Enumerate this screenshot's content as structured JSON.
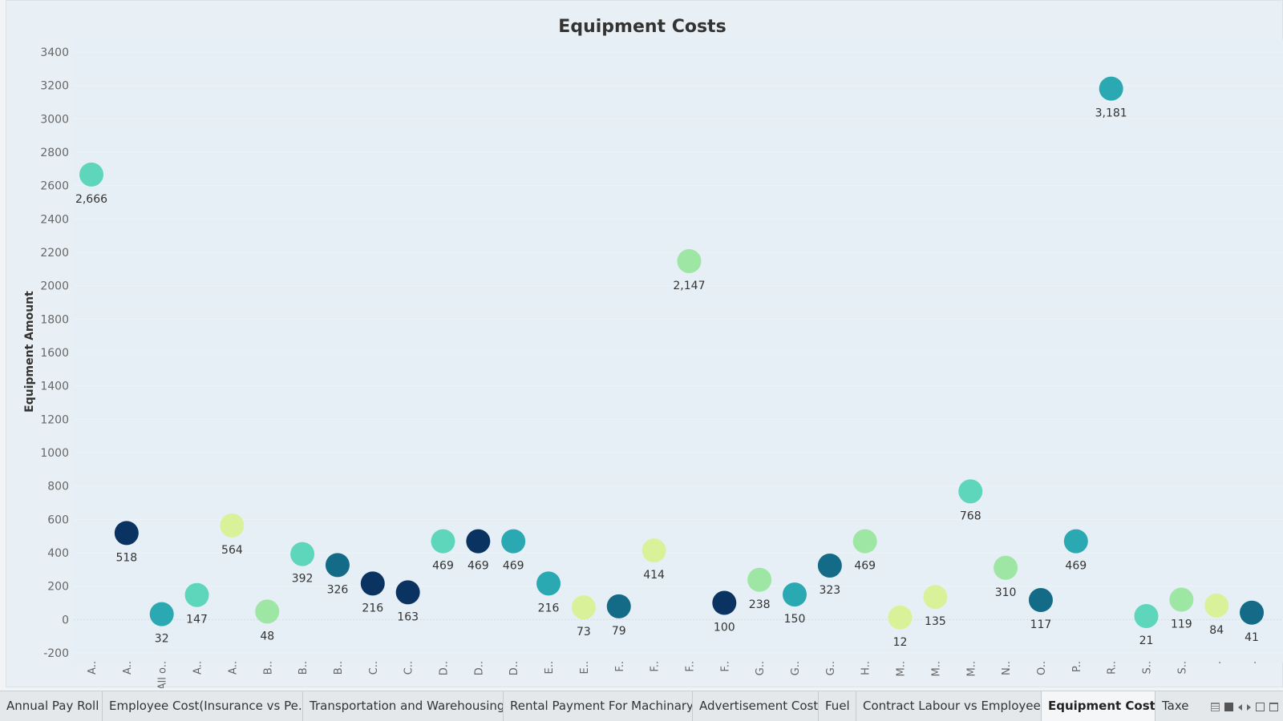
{
  "chart_data": {
    "type": "scatter",
    "title": "Equipment Costs",
    "ylabel": "Equipment Amount",
    "xlabel": "",
    "ylim": [
      -200,
      3400
    ],
    "yticks": [
      -200,
      0,
      200,
      400,
      600,
      800,
      1000,
      1200,
      1400,
      1600,
      1800,
      2000,
      2200,
      2400,
      2600,
      2800,
      3000,
      3200,
      3400
    ],
    "grid": true,
    "categories": [
      "A..",
      "A..",
      "All o..",
      "A..",
      "A..",
      "B..",
      "B..",
      "B..",
      "C..",
      "C..",
      "D..",
      "D..",
      "D..",
      "E..",
      "E..",
      "F..",
      "F..",
      "F..",
      "F..",
      "G..",
      "G..",
      "G..",
      "H..",
      "M..",
      "M..",
      "M..",
      "N..",
      "O..",
      "P..",
      "R..",
      "S..",
      "S..",
      ".",
      "."
    ],
    "values": [
      2666,
      518,
      32,
      147,
      564,
      48,
      392,
      326,
      216,
      163,
      469,
      469,
      469,
      216,
      73,
      79,
      414,
      2147,
      100,
      238,
      150,
      323,
      469,
      12,
      135,
      768,
      310,
      117,
      469,
      3181,
      21,
      119,
      84,
      41
    ],
    "data_labels": [
      "2,666",
      "518",
      "32",
      "147",
      "564",
      "48",
      "392",
      "326",
      "216",
      "163",
      "469",
      "469",
      "469",
      "216",
      "73",
      "79",
      "414",
      "2,147",
      "100",
      "238",
      "150",
      "323",
      "469",
      "12",
      "135",
      "768",
      "310",
      "117",
      "469",
      "3,181",
      "21",
      "119",
      "84",
      "41"
    ],
    "colors": [
      "#5dd6bb",
      "#0b3362",
      "#2aa9b2",
      "#5dd6bb",
      "#d9f29a",
      "#9ee6a4",
      "#5dd6bb",
      "#136b87",
      "#0b3362",
      "#0b3362",
      "#5dd6bb",
      "#0b3362",
      "#2aa9b2",
      "#2aa9b2",
      "#d9f29a",
      "#136b87",
      "#d9f29a",
      "#9ee6a4",
      "#0b3362",
      "#9ee6a4",
      "#2aa9b2",
      "#136b87",
      "#9ee6a4",
      "#d9f29a",
      "#d9f29a",
      "#5dd6bb",
      "#9ee6a4",
      "#136b87",
      "#2aa9b2",
      "#2aa9b2",
      "#5dd6bb",
      "#9ee6a4",
      "#d9f29a",
      "#136b87"
    ]
  },
  "tabs": [
    {
      "label": "Annual Pay Roll"
    },
    {
      "label": "Employee Cost(Insurance vs Pe..."
    },
    {
      "label": "Transportation and Warehousing"
    },
    {
      "label": "Rental Payment For Machinary"
    },
    {
      "label": "Advertisement Cost"
    },
    {
      "label": "Fuel"
    },
    {
      "label": "Contract Labour vs Employee"
    },
    {
      "label": "Equipment Costs"
    },
    {
      "label": "Taxes"
    }
  ],
  "active_tab": "Equipment Costs",
  "colors": {
    "background": "#e8f0f5",
    "tabbar": "#e4e8ea"
  }
}
